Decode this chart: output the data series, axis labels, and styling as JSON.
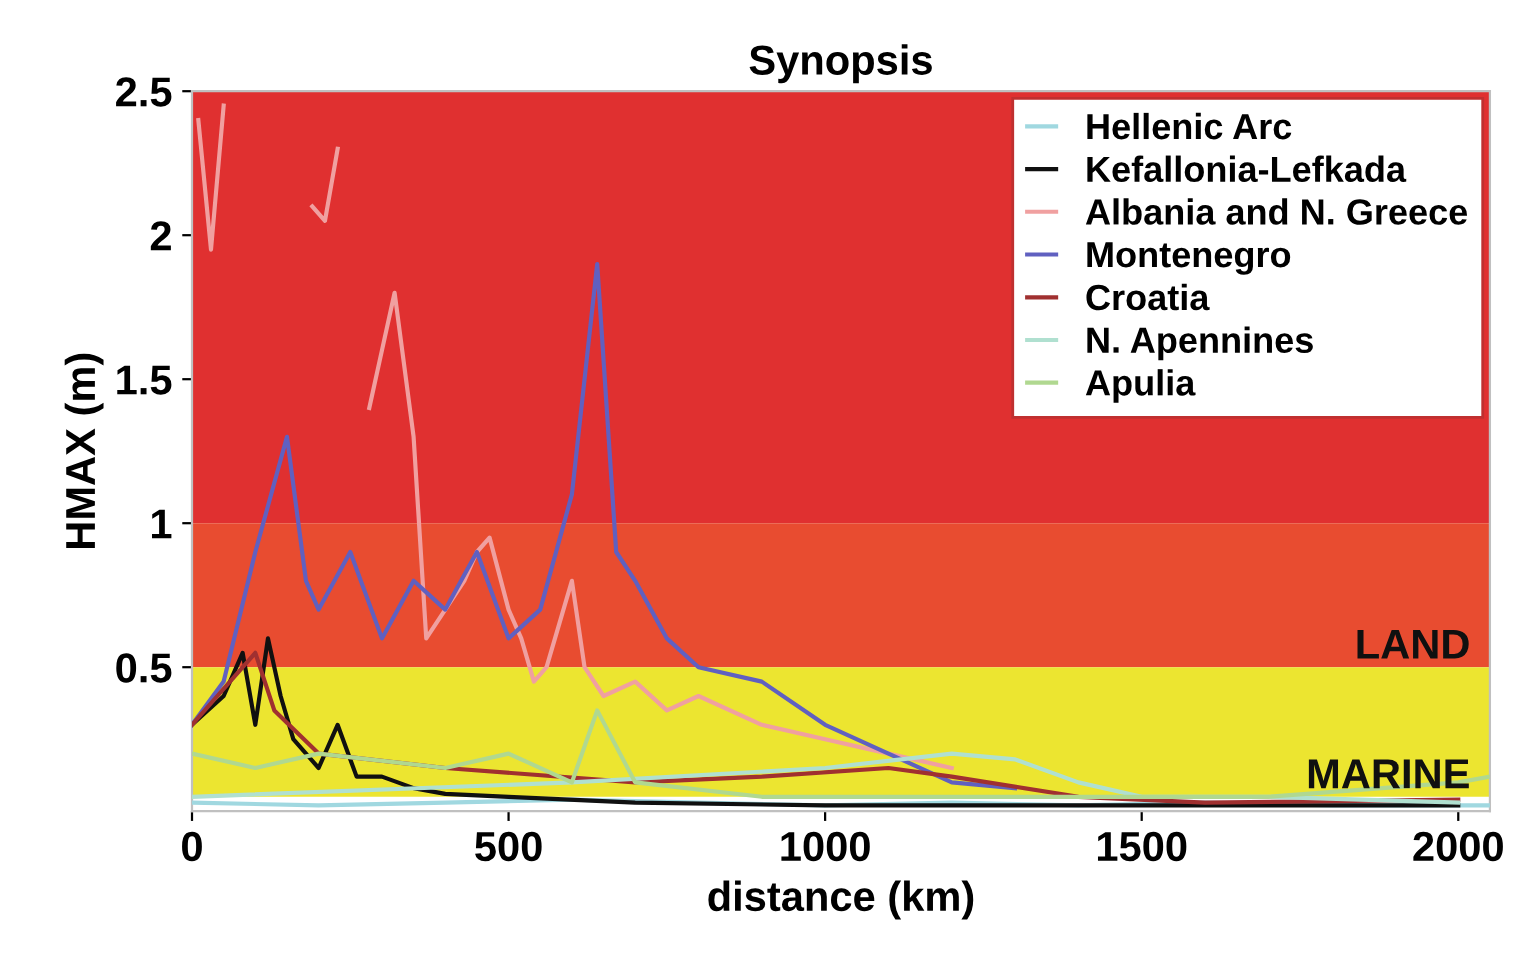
{
  "chart_data": {
    "type": "line",
    "title": "Synopsis",
    "xlabel": "distance (km)",
    "ylabel": "HMAX (m)",
    "xlim": [
      0,
      2050
    ],
    "xticks": [
      0,
      500,
      1000,
      1500,
      2000
    ],
    "ylim": [
      0,
      2.5
    ],
    "yticks": [
      0.5,
      1,
      1.5,
      2,
      2.5
    ],
    "grid": false,
    "legend": "top right",
    "marker": "none",
    "line_style": "solid",
    "bands": [
      {
        "axis": "y",
        "from": 1,
        "to": 2.5,
        "label": null,
        "color": "#e03030"
      },
      {
        "axis": "y",
        "from": 0.5,
        "to": 1,
        "label": "LAND",
        "color": "#e84c30"
      },
      {
        "axis": "y",
        "from": 0.05,
        "to": 0.5,
        "label": "MARINE",
        "color": "#ece530"
      }
    ],
    "series": [
      {
        "name": "Hellenic Arc",
        "color": "#a0d8e0",
        "x": [
          0,
          200,
          400,
          600,
          800,
          1000,
          1200,
          1400,
          1600,
          1800,
          2000,
          2050
        ],
        "values": [
          0.03,
          0.02,
          0.03,
          0.04,
          0.03,
          0.02,
          0.03,
          0.02,
          0.03,
          0.02,
          0.02,
          0.02
        ]
      },
      {
        "name": "Kefallonia-Lefkada",
        "color": "#101010",
        "x": [
          0,
          50,
          80,
          100,
          120,
          140,
          160,
          200,
          230,
          260,
          300,
          350,
          400,
          500,
          700,
          1000,
          1500,
          2000
        ],
        "values": [
          0.3,
          0.4,
          0.55,
          0.3,
          0.6,
          0.4,
          0.25,
          0.15,
          0.3,
          0.12,
          0.12,
          0.08,
          0.06,
          0.05,
          0.03,
          0.02,
          0.02,
          0.02
        ]
      },
      {
        "name": "Albania and N. Greece",
        "color": "#f0a0a0",
        "x": [
          10,
          30,
          50,
          100,
          150,
          190,
          210,
          230,
          260,
          280,
          300,
          320,
          350,
          370,
          400,
          430,
          450,
          470,
          500,
          520,
          540,
          560,
          600,
          620,
          650,
          700,
          750,
          800,
          900,
          1000,
          1100,
          1200
        ],
        "values": [
          2.4,
          1.95,
          2.45,
          null,
          null,
          2.1,
          2.05,
          2.3,
          null,
          1.4,
          1.6,
          1.8,
          1.3,
          0.6,
          0.7,
          0.8,
          0.9,
          0.95,
          0.7,
          0.6,
          0.45,
          0.5,
          0.8,
          0.5,
          0.4,
          0.45,
          0.35,
          0.4,
          0.3,
          0.25,
          0.2,
          0.15
        ]
      },
      {
        "name": "Montenegro",
        "color": "#6060c0",
        "x": [
          0,
          50,
          100,
          150,
          180,
          200,
          250,
          300,
          350,
          400,
          450,
          500,
          550,
          600,
          640,
          670,
          700,
          750,
          800,
          900,
          1000,
          1100,
          1200,
          1300
        ],
        "values": [
          0.3,
          0.45,
          0.9,
          1.3,
          0.8,
          0.7,
          0.9,
          0.6,
          0.8,
          0.7,
          0.9,
          0.6,
          0.7,
          1.1,
          1.9,
          0.9,
          0.8,
          0.6,
          0.5,
          0.45,
          0.3,
          0.2,
          0.1,
          0.08
        ]
      },
      {
        "name": "Croatia",
        "color": "#a03030",
        "x": [
          0,
          60,
          100,
          130,
          200,
          400,
          700,
          900,
          1100,
          1200,
          1400,
          1600,
          2000
        ],
        "values": [
          0.3,
          0.45,
          0.55,
          0.35,
          0.2,
          0.15,
          0.1,
          0.12,
          0.15,
          0.12,
          0.05,
          0.03,
          0.04
        ]
      },
      {
        "name": "N. Apennines",
        "color": "#b0e0d0",
        "x": [
          0,
          600,
          1000,
          1200,
          1300,
          1400,
          1500,
          1700,
          2000
        ],
        "values": [
          0.05,
          0.1,
          0.15,
          0.2,
          0.18,
          0.1,
          0.05,
          0.05,
          0.03
        ]
      },
      {
        "name": "Apulia",
        "color": "#b0d890",
        "x": [
          0,
          100,
          200,
          400,
          500,
          600,
          640,
          700,
          900,
          1300,
          1500,
          1700,
          2000,
          2050
        ],
        "values": [
          0.2,
          0.15,
          0.2,
          0.15,
          0.2,
          0.1,
          0.35,
          0.1,
          0.05,
          0.05,
          0.05,
          0.05,
          0.1,
          0.12
        ]
      }
    ]
  }
}
